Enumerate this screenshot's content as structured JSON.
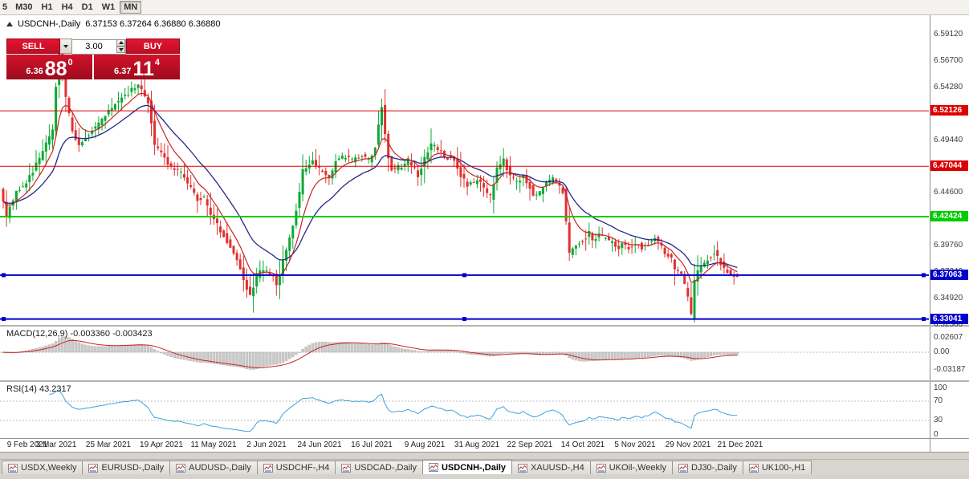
{
  "toolbar": {
    "timeframes": [
      {
        "label": "5",
        "active": false,
        "partial": true
      },
      {
        "label": "M30",
        "active": false
      },
      {
        "label": "H1",
        "active": false
      },
      {
        "label": "H4",
        "active": false
      },
      {
        "label": "D1",
        "active": false
      },
      {
        "label": "W1",
        "active": false
      },
      {
        "label": "MN",
        "active": true
      }
    ]
  },
  "chart_header": {
    "symbol_period": "USDCNH-,Daily",
    "ohlc": "6.37153 6.37264 6.36880 6.36880"
  },
  "trade_panel": {
    "sell_label": "SELL",
    "buy_label": "BUY",
    "volume": "3.00",
    "sell_price": {
      "prefix": "6.36",
      "big": "88",
      "sup": "0"
    },
    "buy_price": {
      "prefix": "6.37",
      "big": "11",
      "sup": "4"
    }
  },
  "price_axis": {
    "labels": [
      "6.59120",
      "6.56700",
      "6.54280",
      "6.51860",
      "6.49440",
      "6.47020",
      "6.44600",
      "6.42180",
      "6.39760",
      "6.37340",
      "6.34920",
      "6.32500"
    ]
  },
  "time_axis": {
    "labels": [
      "9 Feb 2021",
      "3 Mar 2021",
      "25 Mar 2021",
      "19 Apr 2021",
      "11 May 2021",
      "2 Jun 2021",
      "24 Jun 2021",
      "16 Jul 2021",
      "9 Aug 2021",
      "31 Aug 2021",
      "22 Sep 2021",
      "14 Oct 2021",
      "5 Nov 2021",
      "29 Nov 2021",
      "21 Dec 2021"
    ]
  },
  "indicators": {
    "macd": {
      "label": "MACD(12,26,9) -0.003360 -0.003423",
      "axis_labels": [
        {
          "text": "0.02607",
          "value": 0.02607
        },
        {
          "text": "0.00",
          "value": 0
        },
        {
          "text": "-0.03187",
          "value": -0.03187
        }
      ],
      "histogram_color": "#cbcbcb",
      "signal_color": "#cc2222"
    },
    "rsi": {
      "label": "RSI(14) 43.2317",
      "axis_labels": [
        {
          "text": "100",
          "value": 100
        },
        {
          "text": "70",
          "value": 70
        },
        {
          "text": "30",
          "value": 30
        },
        {
          "text": "0",
          "value": 0
        }
      ],
      "line_color": "#3da3d8",
      "levels": [
        70,
        30
      ]
    }
  },
  "tabs": {
    "items": [
      {
        "label": "USDX,Weekly",
        "selected": false
      },
      {
        "label": "EURUSD-,Daily",
        "selected": false
      },
      {
        "label": "AUDUSD-,Daily",
        "selected": false
      },
      {
        "label": "USDCHF-,H4",
        "selected": false
      },
      {
        "label": "USDCAD-,Daily",
        "selected": false
      },
      {
        "label": "USDCNH-,Daily",
        "selected": true
      },
      {
        "label": "XAUUSD-,H4",
        "selected": false
      },
      {
        "label": "UKOil-,Weekly",
        "selected": false
      },
      {
        "label": "DJ30-,Daily",
        "selected": false
      },
      {
        "label": "UK100-,H1",
        "selected": false
      }
    ]
  },
  "chart_data": {
    "type": "candlestick",
    "symbol": "USDCNH-",
    "timeframe": "Daily",
    "current": {
      "open": 6.37153,
      "high": 6.37264,
      "low": 6.3688,
      "close": 6.3688,
      "bid": 6.3688,
      "ask": 6.37114
    },
    "y_range": {
      "top": 6.6088,
      "bottom": 6.325
    },
    "candle_count": 224,
    "x_label_step_candles": 16,
    "up_color": "#0caa33",
    "down_color": "#e03131",
    "ma_fast": {
      "period": 8,
      "color": "#cc2222"
    },
    "ma_slow": {
      "period": 20,
      "color": "#26268c"
    },
    "macd": {
      "fast": 12,
      "slow": 26,
      "signal": 9,
      "last": -0.00336,
      "last_signal": -0.003423
    },
    "rsi": {
      "period": 14,
      "last": 43.2317
    },
    "levels": [
      {
        "value": "6.52126",
        "price": 6.52126,
        "color": "#dd0000",
        "width": 1,
        "handles": false
      },
      {
        "value": "6.47044",
        "price": 6.47044,
        "color": "#dd0000",
        "width": 1,
        "handles": false
      },
      {
        "value": "6.42424",
        "price": 6.42424,
        "color": "#00cc00",
        "width": 2,
        "handles": false
      },
      {
        "value": "6.37063",
        "price": 6.37063,
        "color": "#0000cc",
        "width": 2,
        "handles": true
      },
      {
        "value": "6.33041",
        "price": 6.33041,
        "color": "#0000cc",
        "width": 2,
        "handles": true
      }
    ],
    "price_path": [
      [
        0,
        6.452
      ],
      [
        2,
        6.425
      ],
      [
        5,
        6.448
      ],
      [
        8,
        6.455
      ],
      [
        12,
        6.478
      ],
      [
        16,
        6.503
      ],
      [
        17,
        6.545
      ],
      [
        18,
        6.575
      ],
      [
        19,
        6.558
      ],
      [
        20,
        6.532
      ],
      [
        22,
        6.502
      ],
      [
        24,
        6.49
      ],
      [
        27,
        6.5
      ],
      [
        29,
        6.506
      ],
      [
        31,
        6.514
      ],
      [
        35,
        6.528
      ],
      [
        39,
        6.538
      ],
      [
        42,
        6.545
      ],
      [
        45,
        6.53
      ],
      [
        47,
        6.49
      ],
      [
        50,
        6.478
      ],
      [
        52,
        6.47
      ],
      [
        55,
        6.464
      ],
      [
        57,
        6.455
      ],
      [
        60,
        6.44
      ],
      [
        62,
        6.442
      ],
      [
        64,
        6.426
      ],
      [
        67,
        6.412
      ],
      [
        69,
        6.402
      ],
      [
        72,
        6.386
      ],
      [
        74,
        6.366
      ],
      [
        76,
        6.352
      ],
      [
        78,
        6.37
      ],
      [
        80,
        6.376
      ],
      [
        83,
        6.37
      ],
      [
        84,
        6.362
      ],
      [
        86,
        6.382
      ],
      [
        89,
        6.416
      ],
      [
        91,
        6.446
      ],
      [
        92,
        6.466
      ],
      [
        95,
        6.476
      ],
      [
        97,
        6.468
      ],
      [
        100,
        6.458
      ],
      [
        102,
        6.476
      ],
      [
        105,
        6.48
      ],
      [
        107,
        6.476
      ],
      [
        110,
        6.48
      ],
      [
        112,
        6.476
      ],
      [
        114,
        6.488
      ],
      [
        116,
        6.525
      ],
      [
        118,
        6.478
      ],
      [
        119,
        6.468
      ],
      [
        122,
        6.47
      ],
      [
        124,
        6.476
      ],
      [
        127,
        6.462
      ],
      [
        129,
        6.478
      ],
      [
        131,
        6.49
      ],
      [
        133,
        6.487
      ],
      [
        135,
        6.48
      ],
      [
        138,
        6.476
      ],
      [
        140,
        6.462
      ],
      [
        142,
        6.452
      ],
      [
        145,
        6.458
      ],
      [
        147,
        6.45
      ],
      [
        149,
        6.442
      ],
      [
        151,
        6.468
      ],
      [
        153,
        6.478
      ],
      [
        155,
        6.46
      ],
      [
        157,
        6.456
      ],
      [
        159,
        6.462
      ],
      [
        161,
        6.452
      ],
      [
        162,
        6.443
      ],
      [
        164,
        6.447
      ],
      [
        166,
        6.455
      ],
      [
        168,
        6.46
      ],
      [
        169,
        6.457
      ],
      [
        171,
        6.448
      ],
      [
        173,
        6.39
      ],
      [
        175,
        6.4
      ],
      [
        177,
        6.402
      ],
      [
        179,
        6.41
      ],
      [
        180,
        6.403
      ],
      [
        182,
        6.408
      ],
      [
        184,
        6.404
      ],
      [
        186,
        6.4
      ],
      [
        188,
        6.396
      ],
      [
        189,
        6.4
      ],
      [
        191,
        6.396
      ],
      [
        193,
        6.4
      ],
      [
        195,
        6.396
      ],
      [
        197,
        6.4
      ],
      [
        199,
        6.404
      ],
      [
        200,
        6.4
      ],
      [
        202,
        6.392
      ],
      [
        204,
        6.386
      ],
      [
        205,
        6.377
      ],
      [
        207,
        6.371
      ],
      [
        209,
        6.35
      ],
      [
        210,
        6.333
      ],
      [
        211,
        6.365
      ],
      [
        212,
        6.373
      ],
      [
        213,
        6.378
      ],
      [
        214,
        6.383
      ],
      [
        216,
        6.388
      ],
      [
        217,
        6.392
      ],
      [
        218,
        6.386
      ],
      [
        219,
        6.381
      ],
      [
        220,
        6.376
      ],
      [
        222,
        6.372
      ],
      [
        223,
        6.3688
      ]
    ]
  }
}
